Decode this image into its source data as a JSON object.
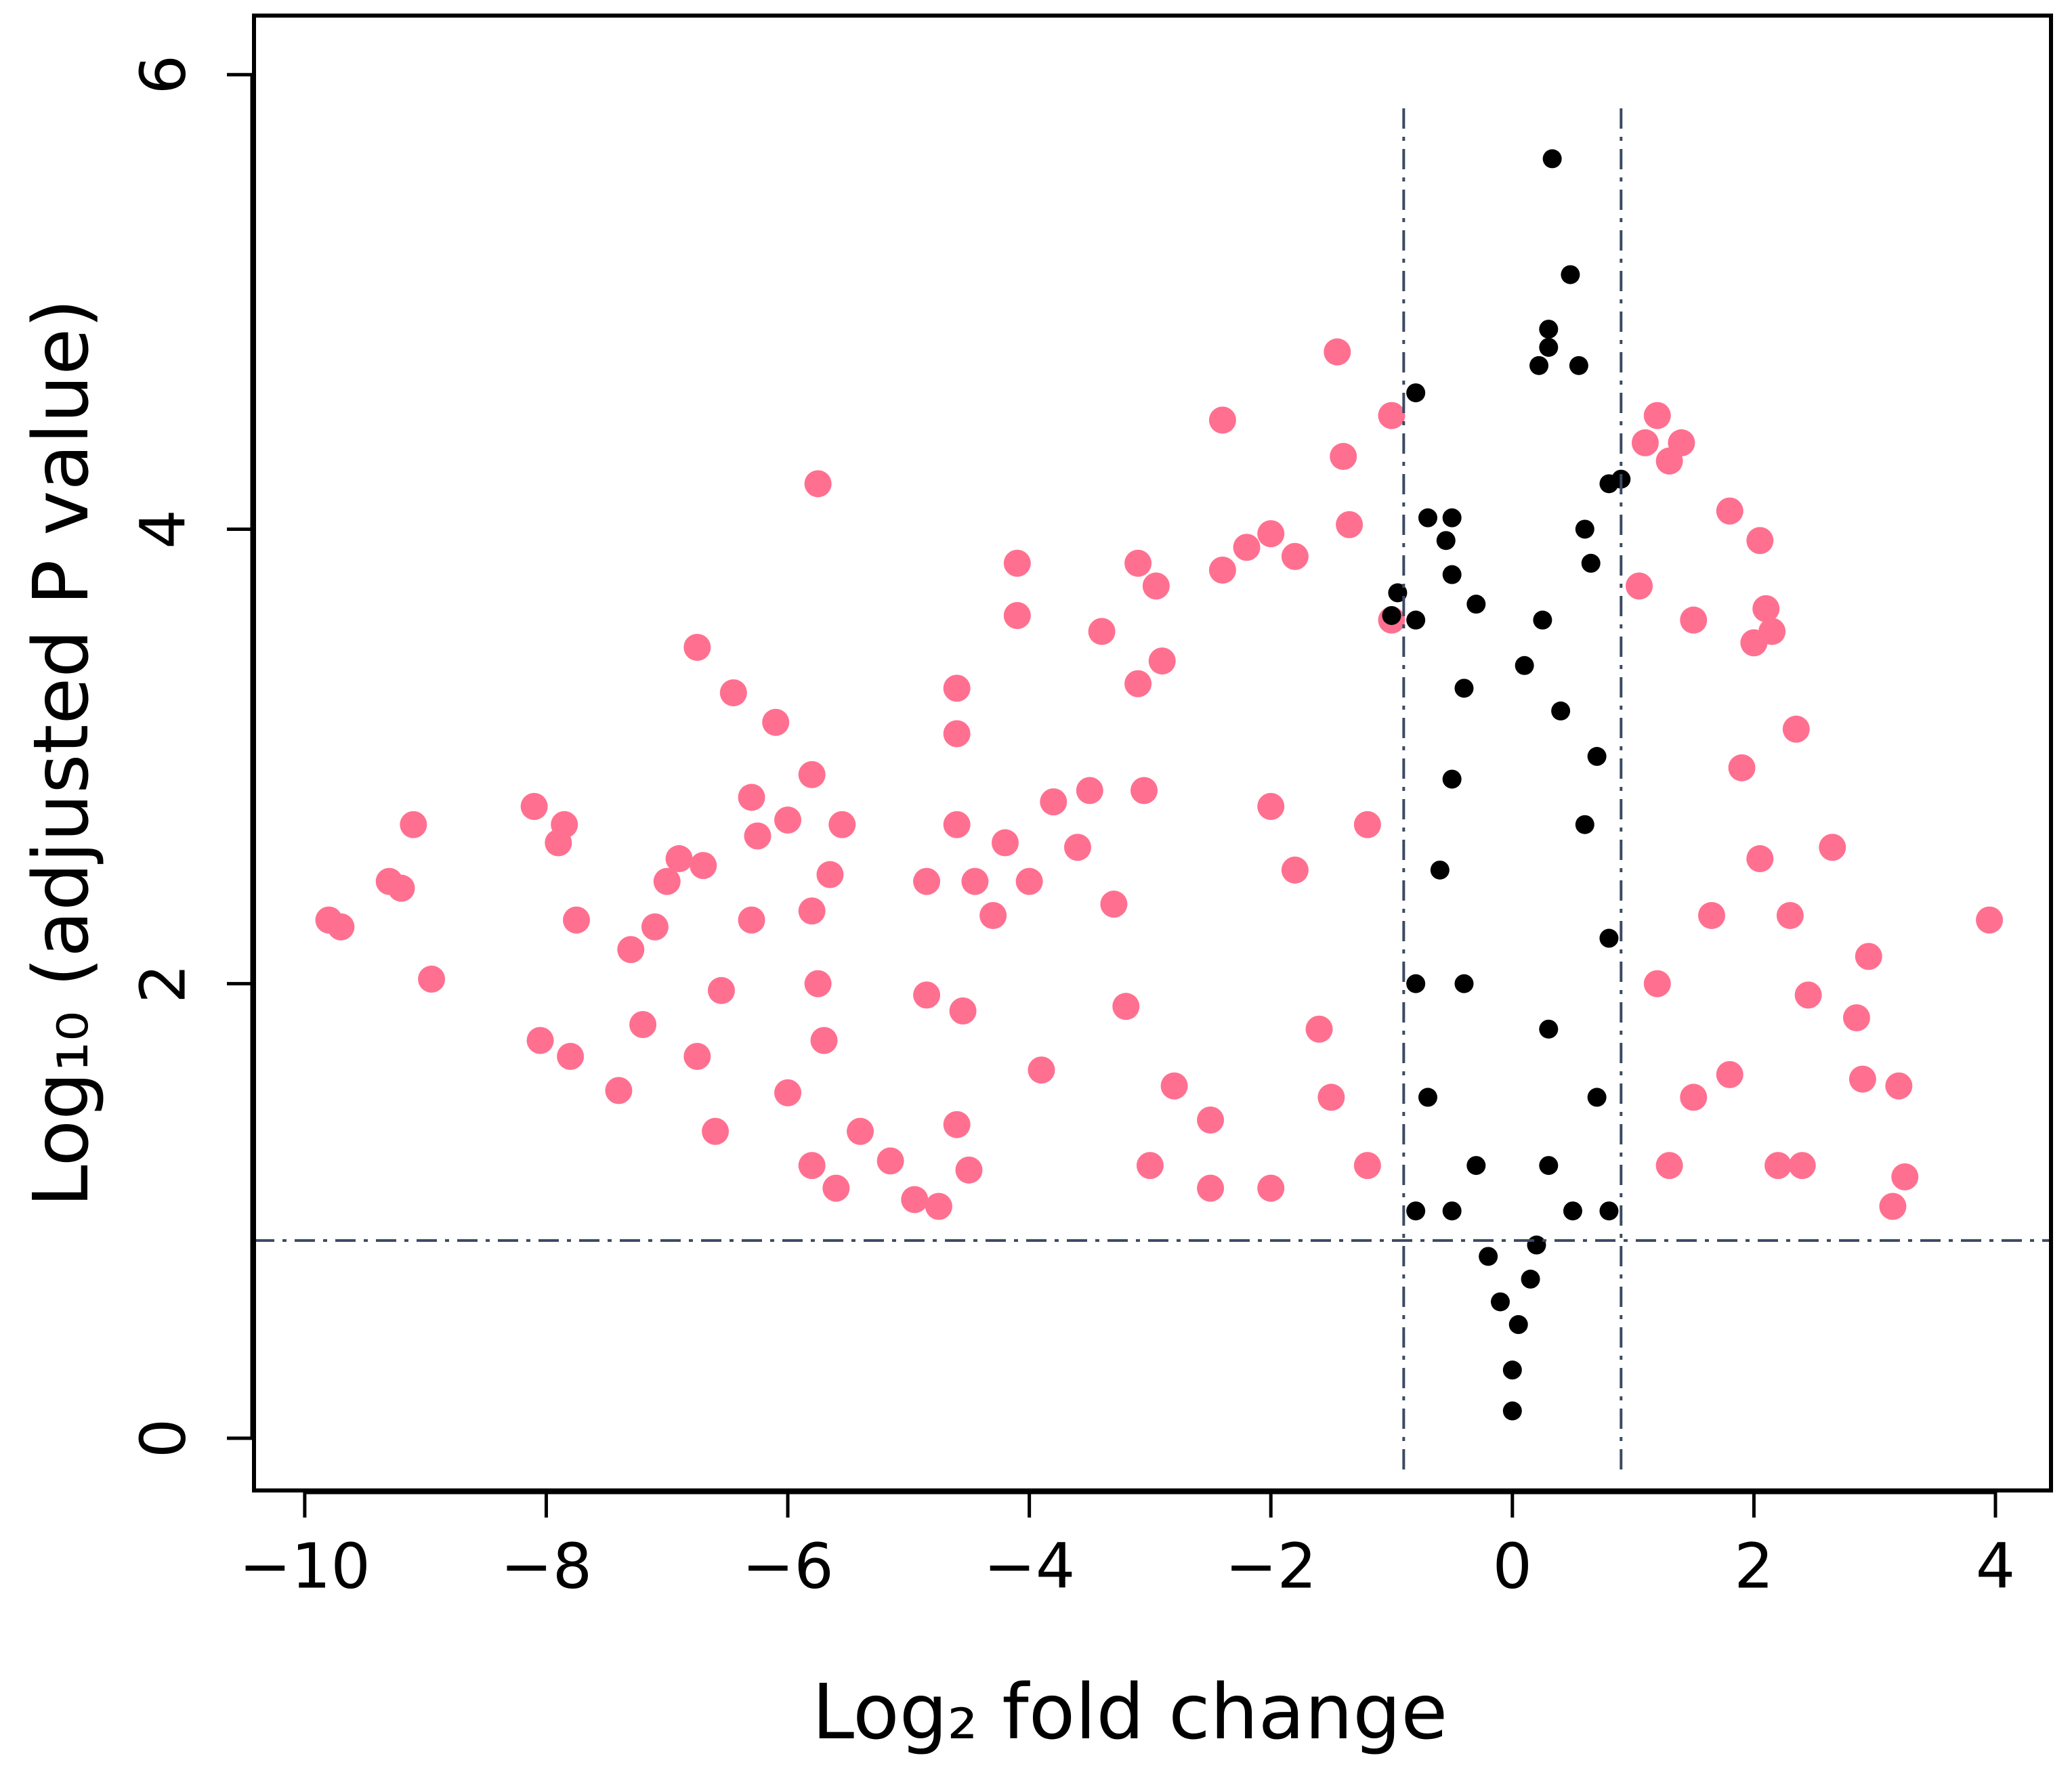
{
  "chart_data": {
    "type": "scatter",
    "x_label": "Log₂ fold change",
    "y_label": "Log₁₀ (adjusted P value)",
    "xlim": [
      -10.42,
      4.46
    ],
    "ylim": [
      -0.23,
      6.26
    ],
    "xticks": [
      {
        "value": -10,
        "label": "−10"
      },
      {
        "value": -8,
        "label": "−8"
      },
      {
        "value": -6,
        "label": "−6"
      },
      {
        "value": -4,
        "label": "−4"
      },
      {
        "value": -2,
        "label": "−2"
      },
      0,
      2,
      4
    ],
    "yticks": [
      0,
      2,
      4,
      6
    ],
    "vlines": [
      -0.9,
      0.9
    ],
    "hline": 0.87,
    "threshold_color": "#3b4a63",
    "series": [
      {
        "color": "#ff7090",
        "x": [
          -9.8,
          -9.7,
          -9.3,
          -9.2,
          -9.1,
          -8.95,
          -8.1,
          -8.05,
          -7.9,
          -7.85,
          -7.8,
          -7.75,
          -7.4,
          -7.3,
          -7.2,
          -7.1,
          -7.0,
          -6.9,
          -6.75,
          -6.7,
          -6.75,
          -6.55,
          -6.6,
          -6.45,
          -6.3,
          -6.3,
          -6.25,
          -6.1,
          -6.0,
          -6.0,
          -5.8,
          -5.7,
          -5.75,
          -5.8,
          -5.75,
          -5.65,
          -5.55,
          -5.6,
          -5.8,
          -5.4,
          -5.15,
          -4.95,
          -4.85,
          -4.85,
          -4.75,
          -4.6,
          -4.6,
          -4.6,
          -4.6,
          -4.55,
          -4.5,
          -4.45,
          -4.3,
          -4.2,
          -4.1,
          -4.1,
          -4.0,
          -3.9,
          -3.8,
          -3.6,
          -3.5,
          -3.4,
          -3.3,
          -3.2,
          -3.1,
          -3.1,
          -3.05,
          -2.95,
          -2.9,
          -2.8,
          -2.5,
          -2.4,
          -2.4,
          -2.2,
          -2.0,
          -2.0,
          -1.8,
          -1.8,
          -1.6,
          -1.45,
          -1.4,
          -1.35,
          -1.2,
          -1.0,
          -1.0,
          -1.2,
          -2.0,
          -1.5,
          -2.5,
          -3.0,
          1.05,
          1.1,
          1.2,
          1.3,
          1.4,
          1.5,
          1.65,
          1.8,
          1.9,
          2.05,
          2.1,
          2.0,
          2.15,
          2.05,
          2.35,
          2.3,
          2.45,
          2.65,
          2.85,
          2.95,
          2.9,
          3.2,
          3.25,
          3.15,
          3.95,
          1.5,
          1.3,
          2.2,
          2.4,
          1.2,
          1.8
        ],
        "values": [
          2.28,
          2.25,
          2.45,
          2.42,
          2.7,
          2.02,
          2.78,
          1.75,
          2.62,
          2.7,
          1.68,
          2.28,
          1.53,
          2.15,
          1.82,
          2.25,
          2.45,
          2.55,
          3.48,
          2.52,
          1.68,
          1.97,
          1.35,
          3.28,
          2.82,
          2.28,
          2.65,
          3.15,
          2.72,
          1.52,
          2.32,
          1.75,
          4.2,
          2.92,
          2.0,
          2.48,
          2.7,
          1.1,
          1.2,
          1.35,
          1.22,
          1.05,
          2.45,
          1.95,
          1.02,
          2.7,
          3.3,
          3.1,
          1.38,
          1.88,
          1.18,
          2.45,
          2.3,
          2.62,
          3.85,
          3.62,
          2.45,
          1.62,
          2.8,
          2.6,
          2.85,
          3.55,
          2.35,
          1.9,
          3.85,
          3.32,
          2.85,
          3.75,
          3.42,
          1.55,
          1.4,
          3.82,
          4.48,
          3.92,
          3.98,
          2.78,
          2.5,
          3.88,
          1.8,
          4.78,
          4.32,
          4.02,
          2.7,
          4.5,
          3.6,
          1.2,
          1.1,
          1.5,
          1.1,
          1.2,
          3.75,
          4.38,
          4.5,
          4.3,
          4.38,
          3.6,
          2.3,
          4.08,
          2.95,
          3.95,
          3.65,
          3.5,
          3.55,
          2.55,
          3.12,
          2.3,
          1.95,
          2.6,
          1.85,
          2.12,
          1.58,
          1.55,
          1.15,
          1.02,
          2.28,
          1.5,
          1.2,
          1.2,
          1.2,
          2.0,
          1.6
        ]
      },
      {
        "color": "#000000",
        "x": [
          0.33,
          0.48,
          0.3,
          0.3,
          0.22,
          0.55,
          -0.8,
          -0.7,
          -0.5,
          -0.55,
          -0.5,
          -0.95,
          -0.3,
          -0.8,
          -1.0,
          0.8,
          0.9,
          0.6,
          0.65,
          0.1,
          0.25,
          -0.4,
          0.4,
          0,
          0,
          0.05,
          -0.1,
          0.15,
          -0.2,
          0.2,
          -0.5,
          0.5,
          -0.7,
          0.7,
          -0.8,
          0.8,
          -0.6,
          0.6,
          -0.4,
          0.3,
          -0.3,
          0.3,
          -0.8,
          0.8,
          -0.5,
          0.7
        ],
        "values": [
          5.63,
          5.12,
          4.88,
          4.8,
          4.72,
          4.72,
          4.6,
          4.05,
          4.05,
          3.95,
          3.8,
          3.72,
          3.67,
          3.6,
          3.62,
          4.2,
          4.22,
          4.0,
          3.85,
          3.4,
          3.6,
          3.3,
          3.2,
          0.12,
          0.3,
          0.5,
          0.6,
          0.7,
          0.8,
          0.85,
          1.0,
          1.0,
          1.5,
          1.5,
          2.0,
          2.2,
          2.5,
          2.7,
          2.0,
          1.8,
          1.2,
          1.2,
          1.0,
          1.0,
          2.9,
          3.0
        ]
      }
    ]
  }
}
